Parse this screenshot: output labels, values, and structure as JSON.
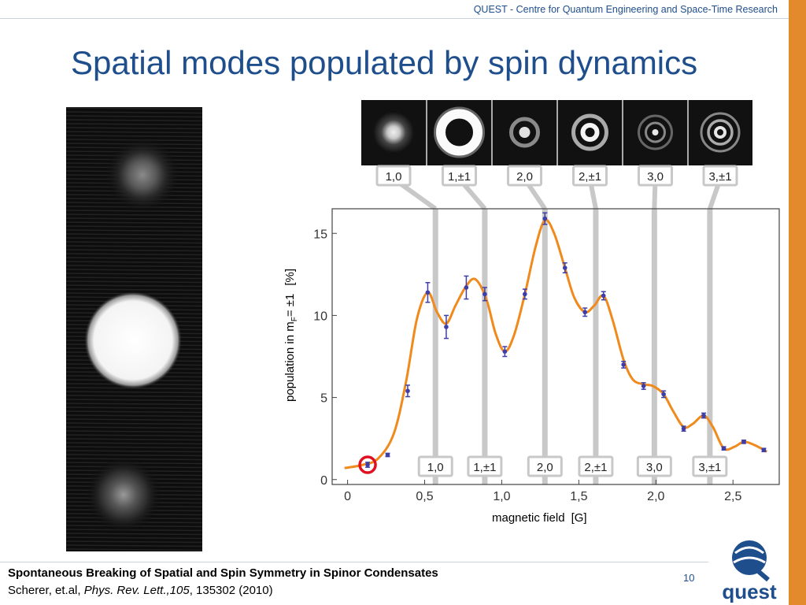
{
  "header": {
    "institute": "QUEST - Centre for Quantum Engineering and Space-Time Research"
  },
  "title": "Spatial modes populated by spin dynamics",
  "modes": [
    "1,0",
    "1,±1",
    "2,0",
    "2,±1",
    "3,0",
    "3,±1"
  ],
  "chart_data": {
    "type": "scatter",
    "xlabel": "magnetic field",
    "xunit": "[G]",
    "ylabel": "population in m",
    "ylabel_sub": "F",
    "ylabel_eq": "= ±1",
    "yunit": "[%]",
    "xlim": [
      -0.1,
      2.8
    ],
    "ylim": [
      -0.3,
      16.5
    ],
    "x_ticks": [
      "0",
      "0,5",
      "1,0",
      "1,5",
      "2,0",
      "2,5"
    ],
    "y_ticks": [
      "0",
      "5",
      "10",
      "15"
    ],
    "series": [
      {
        "points": [
          {
            "x": 0.13,
            "y": 0.9,
            "err": 0.15
          },
          {
            "x": 0.26,
            "y": 1.5,
            "err": 0.1
          },
          {
            "x": 0.39,
            "y": 5.4,
            "err": 0.35
          },
          {
            "x": 0.52,
            "y": 11.4,
            "err": 0.6
          },
          {
            "x": 0.64,
            "y": 9.3,
            "err": 0.7
          },
          {
            "x": 0.77,
            "y": 11.7,
            "err": 0.7
          },
          {
            "x": 0.89,
            "y": 11.3,
            "err": 0.4
          },
          {
            "x": 1.02,
            "y": 7.8,
            "err": 0.3
          },
          {
            "x": 1.15,
            "y": 11.3,
            "err": 0.3
          },
          {
            "x": 1.28,
            "y": 15.9,
            "err": 0.35
          },
          {
            "x": 1.41,
            "y": 12.9,
            "err": 0.3
          },
          {
            "x": 1.54,
            "y": 10.2,
            "err": 0.25
          },
          {
            "x": 1.66,
            "y": 11.2,
            "err": 0.25
          },
          {
            "x": 1.79,
            "y": 7.0,
            "err": 0.2
          },
          {
            "x": 1.92,
            "y": 5.7,
            "err": 0.2
          },
          {
            "x": 2.05,
            "y": 5.2,
            "err": 0.2
          },
          {
            "x": 2.18,
            "y": 3.1,
            "err": 0.15
          },
          {
            "x": 2.31,
            "y": 3.9,
            "err": 0.15
          },
          {
            "x": 2.44,
            "y": 1.9,
            "err": 0.1
          },
          {
            "x": 2.57,
            "y": 2.3,
            "err": 0.1
          },
          {
            "x": 2.7,
            "y": 1.8,
            "err": 0.1
          }
        ]
      }
    ],
    "fit_curve": [
      [
        -0.02,
        0.7
      ],
      [
        0.1,
        0.9
      ],
      [
        0.2,
        1.3
      ],
      [
        0.3,
        2.8
      ],
      [
        0.38,
        6.0
      ],
      [
        0.45,
        9.8
      ],
      [
        0.52,
        11.4
      ],
      [
        0.58,
        10.2
      ],
      [
        0.64,
        9.5
      ],
      [
        0.7,
        10.6
      ],
      [
        0.77,
        11.8
      ],
      [
        0.83,
        12.2
      ],
      [
        0.9,
        11.0
      ],
      [
        0.96,
        8.9
      ],
      [
        1.02,
        7.8
      ],
      [
        1.08,
        8.8
      ],
      [
        1.15,
        11.3
      ],
      [
        1.22,
        14.2
      ],
      [
        1.28,
        15.8
      ],
      [
        1.34,
        15.0
      ],
      [
        1.41,
        12.9
      ],
      [
        1.47,
        11.1
      ],
      [
        1.54,
        10.2
      ],
      [
        1.6,
        10.6
      ],
      [
        1.66,
        11.2
      ],
      [
        1.72,
        9.7
      ],
      [
        1.79,
        7.3
      ],
      [
        1.85,
        6.1
      ],
      [
        1.92,
        5.8
      ],
      [
        1.98,
        5.7
      ],
      [
        2.05,
        5.2
      ],
      [
        2.11,
        4.2
      ],
      [
        2.18,
        3.2
      ],
      [
        2.24,
        3.4
      ],
      [
        2.31,
        3.9
      ],
      [
        2.37,
        3.2
      ],
      [
        2.44,
        1.9
      ],
      [
        2.51,
        2.0
      ],
      [
        2.57,
        2.3
      ],
      [
        2.64,
        2.1
      ],
      [
        2.72,
        1.7
      ]
    ],
    "mode_lines": [
      {
        "x": 0.57,
        "label": "1,0"
      },
      {
        "x": 0.89,
        "label": "1,±1"
      },
      {
        "x": 1.28,
        "label": "2,0"
      },
      {
        "x": 1.61,
        "label": "2,±1"
      },
      {
        "x": 1.99,
        "label": "3,0"
      },
      {
        "x": 2.35,
        "label": "3,±1"
      }
    ],
    "highlight_x": 0.13,
    "colors": {
      "curve": "#f08a1d",
      "points": "#3d3ea8",
      "mode_lines": "#c8c8c8",
      "highlight": "#e01020"
    }
  },
  "citation": {
    "title": "Spontaneous Breaking of Spatial and Spin Symmetry in Spinor Condensates",
    "authors": "Scherer, et.al, ",
    "journal": "Phys. Rev. Lett.,105",
    "rest": ", 135302 (2010)"
  },
  "page_number": "10",
  "logo": {
    "text": "quest",
    "icon": "quest-globe-logo"
  },
  "colors": {
    "brand_blue": "#1f4e8c",
    "accent_orange": "#e38b2c"
  }
}
